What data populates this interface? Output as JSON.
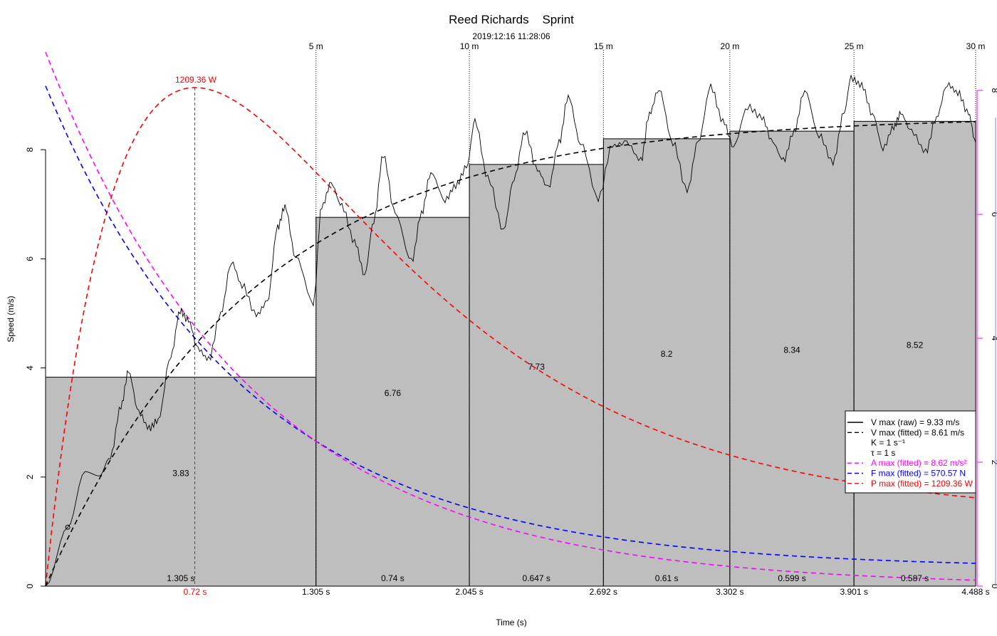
{
  "chart_data": {
    "type": "bar+line",
    "title": "Reed Richards    Sprint",
    "subtitle": "2019:12:16 11:28:06",
    "xlabel": "Time (s)",
    "ylabel": "Speed (m/s)",
    "xlim": [
      0,
      4.488
    ],
    "ylim_left": [
      0,
      8
    ],
    "left_ticks": [
      "0",
      "2",
      "4",
      "6",
      "8"
    ],
    "right_axis_ticks": [
      "0",
      "2",
      "4",
      "6",
      "8"
    ],
    "right_axis_color": "#ff00ff",
    "splits": {
      "distance_labels": [
        "5 m",
        "10 m",
        "15 m",
        "20 m",
        "25 m",
        "30 m"
      ],
      "end_times": [
        1.305,
        2.045,
        2.692,
        3.302,
        3.901,
        4.488
      ],
      "end_time_labels": [
        "1.305 s",
        "2.045 s",
        "2.692 s",
        "3.302 s",
        "3.901 s",
        "4.488 s"
      ],
      "mean_speeds": [
        3.83,
        6.76,
        7.73,
        8.2,
        8.34,
        8.52
      ],
      "mean_speed_labels": [
        "3.83",
        "6.76",
        "7.73",
        "8.2",
        "8.34",
        "8.52"
      ],
      "durations": [
        "1.305 s",
        "0.74 s",
        "0.647 s",
        "0.61 s",
        "0.599 s",
        "0.587 s"
      ],
      "bar_color": "#bebebe"
    },
    "pmax_time": 0.72,
    "pmax_time_label": "0.72 s",
    "pmax_label": "1209.36 W",
    "model": {
      "vmax": 8.61,
      "tau": 1,
      "amax": 8.62,
      "fmax": 570.57,
      "pmax": 1209.36
    },
    "raw_speed": {
      "t": [
        0,
        0.107,
        0.19,
        0.26,
        0.313,
        0.364,
        0.4,
        0.45,
        0.5,
        0.543,
        0.605,
        0.649,
        0.69,
        0.735,
        0.787,
        0.845,
        0.897,
        0.948,
        1.017,
        1.069,
        1.12,
        1.155,
        1.206,
        1.292,
        1.333,
        1.378,
        1.43,
        1.491,
        1.54,
        1.584,
        1.629,
        1.687,
        1.766,
        1.814,
        1.859,
        1.928,
        1.979,
        2.031,
        2.072,
        2.134,
        2.21,
        2.261,
        2.313,
        2.374,
        2.426,
        2.478,
        2.522,
        2.581,
        2.667,
        2.735,
        2.804,
        2.873,
        2.914,
        2.959,
        3.027,
        3.096,
        3.148,
        3.21,
        3.268,
        3.32,
        3.388,
        3.457,
        3.509,
        3.56,
        3.612,
        3.663,
        3.732,
        3.8,
        3.852,
        3.887,
        3.938,
        3.99,
        4.041,
        4.093,
        4.127,
        4.179,
        4.247,
        4.299,
        4.351,
        4.402,
        4.454,
        4.488
      ],
      "v": [
        0,
        1.08,
        2.1,
        2.02,
        2.38,
        3.3,
        3.93,
        3.18,
        2.89,
        3.05,
        4.23,
        5.05,
        4.86,
        4.35,
        4.15,
        5.0,
        5.94,
        5.52,
        4.97,
        5.2,
        6.57,
        6.96,
        6.05,
        5.2,
        6.96,
        7.38,
        6.96,
        6.31,
        5.72,
        6.7,
        7.9,
        6.83,
        5.95,
        6.83,
        7.58,
        7.08,
        7.34,
        7.67,
        8.52,
        7.48,
        6.54,
        7.48,
        8.33,
        7.62,
        7.3,
        8.13,
        8.98,
        8.13,
        7.11,
        8.07,
        8.13,
        7.8,
        8.66,
        9.11,
        8.13,
        7.25,
        8.13,
        9.15,
        8.53,
        8.07,
        8.79,
        8.59,
        8.13,
        7.8,
        8.33,
        9.09,
        8.27,
        7.77,
        8.66,
        9.31,
        9.18,
        8.66,
        8.03,
        8.42,
        8.66,
        8.33,
        7.96,
        8.59,
        9.2,
        9.05,
        8.66,
        8.13
      ]
    },
    "legend": {
      "position": "right",
      "items": [
        {
          "label": "V max (raw) = 9.33 m/s",
          "color": "#000000",
          "style": "solid"
        },
        {
          "label": "V max (fitted) = 8.61 m/s",
          "color": "#000000",
          "style": "dashed"
        },
        {
          "label": "K = 1 s⁻¹",
          "color": "#000000",
          "style": "none"
        },
        {
          "label": "τ = 1 s",
          "color": "#000000",
          "style": "none"
        },
        {
          "label": "A max (fitted) = 8.62 m/s²",
          "color": "#ff00ff",
          "style": "dashed"
        },
        {
          "label": "F max (fitted) = 570.57 N",
          "color": "#0000ff",
          "style": "dashed"
        },
        {
          "label": "P max (fitted) = 1209.36 W",
          "color": "#ff0000",
          "style": "dashed"
        }
      ]
    }
  }
}
